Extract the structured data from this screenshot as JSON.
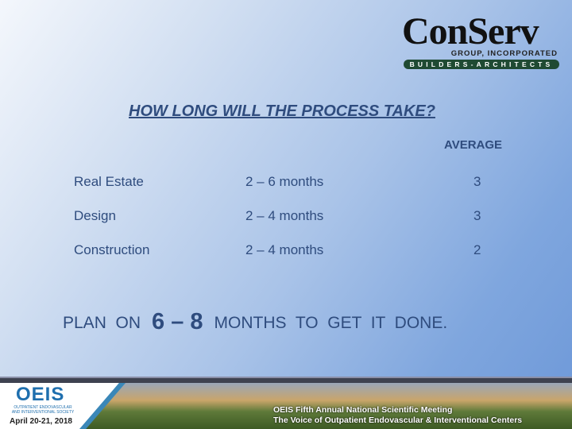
{
  "logo": {
    "name": "ConServ",
    "subtitle": "GROUP, INCORPORATED",
    "tagline": "BUILDERS-ARCHITECTS"
  },
  "title": "HOW LONG WILL THE PROCESS TAKE?",
  "table": {
    "average_header": "AVERAGE",
    "rows": [
      {
        "phase": "Real Estate",
        "range": "2 – 6 months",
        "average": "3"
      },
      {
        "phase": "Design",
        "range": "2 – 4 months",
        "average": "3"
      },
      {
        "phase": "Construction",
        "range": "2 – 4 months",
        "average": "2"
      }
    ]
  },
  "plan": {
    "prefix": "PLAN  ON",
    "value": "6 – 8",
    "suffix": "MONTHS  TO  GET  IT  DONE."
  },
  "footer": {
    "org_logo": "OEIS",
    "org_name": "OUTPATIENT ENDOVASCULAR AND INTERVENTIONAL SOCIETY",
    "date": "April 20-21, 2018",
    "meeting_line1": "OEIS Fifth Annual National Scientific Meeting",
    "meeting_line2": "The Voice of Outpatient Endovascular & Interventional Centers"
  },
  "colors": {
    "text": "#2f4c7e",
    "logo_bar": "#1f4a33",
    "oeis_blue": "#1f6fae"
  }
}
